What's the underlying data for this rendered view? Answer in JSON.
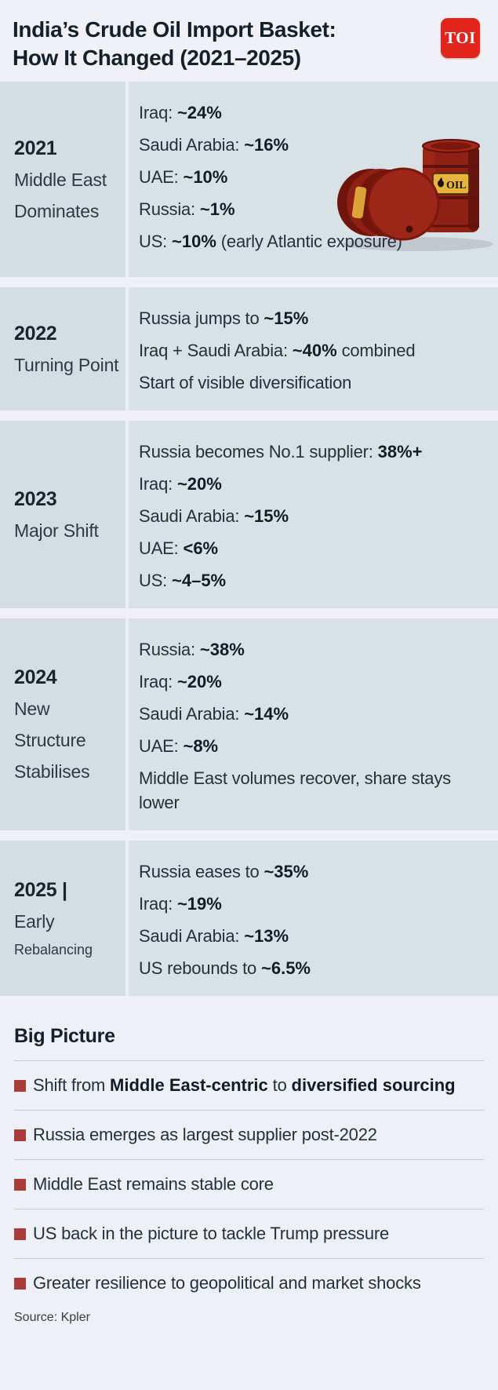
{
  "header": {
    "title": "India’s Crude Oil Import Basket: How It Changed (2021–2025)",
    "logo": "TOI"
  },
  "colors": {
    "accent_red": "#e1251c",
    "bullet_red": "#a93c38",
    "row_bg": "#d8e1e5",
    "row_left_bg": "#d4dee2",
    "page_bg": "#f0f1f6",
    "barrel_red": "#8e2014",
    "label_yellow": "#e7b33c"
  },
  "illustration": {
    "name": "oil-barrels",
    "barrel_label": "OIL"
  },
  "sections": [
    {
      "name": "2021",
      "left": [
        {
          "t": "2021",
          "s": "year"
        },
        {
          "t": "Middle East Dominates",
          "s": "sub"
        }
      ],
      "items": [
        {
          "runs": [
            {
              "t": "Iraq: "
            },
            {
              "t": "~24%",
              "b": true
            }
          ]
        },
        {
          "runs": [
            {
              "t": "Saudi Arabia: "
            },
            {
              "t": "~16%",
              "b": true
            }
          ]
        },
        {
          "runs": [
            {
              "t": "UAE: "
            },
            {
              "t": "~10%",
              "b": true
            }
          ]
        },
        {
          "runs": [
            {
              "t": "Russia: "
            },
            {
              "t": "~1%",
              "b": true
            }
          ]
        },
        {
          "runs": [
            {
              "t": "US: "
            },
            {
              "t": "~10%",
              "b": true
            },
            {
              "t": " (early Atlantic exposure)"
            }
          ]
        }
      ],
      "has_illustration": true
    },
    {
      "name": "2022",
      "left": [
        {
          "t": "2022",
          "s": "year"
        },
        {
          "t": "Turning Point",
          "s": "sub"
        }
      ],
      "items": [
        {
          "runs": [
            {
              "t": "Russia jumps to "
            },
            {
              "t": "~15%",
              "b": true
            }
          ]
        },
        {
          "runs": [
            {
              "t": "Iraq + Saudi Arabia: "
            },
            {
              "t": "~40%",
              "b": true
            },
            {
              "t": " combined"
            }
          ]
        },
        {
          "runs": [
            {
              "t": "Start of visible diversification"
            }
          ]
        }
      ],
      "has_illustration": false
    },
    {
      "name": "2023",
      "left": [
        {
          "t": "2023",
          "s": "year"
        },
        {
          "t": "Major Shift",
          "s": "sub"
        }
      ],
      "items": [
        {
          "runs": [
            {
              "t": "Russia becomes No.1 supplier: "
            },
            {
              "t": "38%+",
              "b": true
            }
          ]
        },
        {
          "runs": [
            {
              "t": "Iraq: "
            },
            {
              "t": "~20%",
              "b": true
            }
          ]
        },
        {
          "runs": [
            {
              "t": "Saudi Arabia: "
            },
            {
              "t": "~15%",
              "b": true
            }
          ]
        },
        {
          "runs": [
            {
              "t": "UAE: "
            },
            {
              "t": "<6%",
              "b": true
            }
          ]
        },
        {
          "runs": [
            {
              "t": "US: "
            },
            {
              "t": "~4–5%",
              "b": true
            }
          ]
        }
      ],
      "has_illustration": false
    },
    {
      "name": "2024",
      "left": [
        {
          "t": "2024",
          "s": "year"
        },
        {
          "t": "New Structure Stabilises",
          "s": "sub"
        }
      ],
      "items": [
        {
          "runs": [
            {
              "t": "Russia: "
            },
            {
              "t": "~38%",
              "b": true
            }
          ]
        },
        {
          "runs": [
            {
              "t": "Iraq: "
            },
            {
              "t": "~20%",
              "b": true
            }
          ]
        },
        {
          "runs": [
            {
              "t": "Saudi Arabia: "
            },
            {
              "t": "~14%",
              "b": true
            }
          ]
        },
        {
          "runs": [
            {
              "t": "UAE: "
            },
            {
              "t": "~8%",
              "b": true
            }
          ]
        },
        {
          "runs": [
            {
              "t": "Middle East volumes recover, share stays lower"
            }
          ]
        }
      ],
      "has_illustration": false
    },
    {
      "name": "2025",
      "left": [
        {
          "t": "2025 |",
          "s": "year"
        },
        {
          "t": "Early",
          "s": "sub"
        },
        {
          "t": "Rebalancing",
          "s": "sub-small"
        }
      ],
      "items": [
        {
          "runs": [
            {
              "t": "Russia eases to "
            },
            {
              "t": "~35%",
              "b": true
            }
          ]
        },
        {
          "runs": [
            {
              "t": "Iraq: "
            },
            {
              "t": "~19%",
              "b": true
            }
          ]
        },
        {
          "runs": [
            {
              "t": "Saudi Arabia: "
            },
            {
              "t": "~13%",
              "b": true
            }
          ]
        },
        {
          "runs": [
            {
              "t": "US rebounds to "
            },
            {
              "t": "~6.5%",
              "b": true
            }
          ]
        }
      ],
      "has_illustration": false
    }
  ],
  "big_picture": {
    "heading": "Big Picture",
    "items": [
      {
        "runs": [
          {
            "t": "Shift from "
          },
          {
            "t": "Middle East-centric",
            "b": true
          },
          {
            "t": " to "
          },
          {
            "t": "diversified sourcing",
            "b": true
          }
        ]
      },
      {
        "runs": [
          {
            "t": "Russia emerges as largest supplier post-2022"
          }
        ]
      },
      {
        "runs": [
          {
            "t": "Middle East remains stable core"
          }
        ]
      },
      {
        "runs": [
          {
            "t": "US back in the picture to tackle Trump pressure"
          }
        ]
      },
      {
        "runs": [
          {
            "t": "Greater resilience to geopolitical and market shocks"
          }
        ]
      }
    ]
  },
  "footer": {
    "source": "Source: Kpler"
  },
  "chart_data": {
    "type": "table",
    "title": "India’s Crude Oil Import Basket: How It Changed (2021–2025)",
    "rows": [
      {
        "year": "2021",
        "phase": "Middle East Dominates",
        "values": {
          "Iraq": "~24%",
          "Saudi Arabia": "~16%",
          "UAE": "~10%",
          "Russia": "~1%",
          "US": "~10% (early Atlantic exposure)"
        }
      },
      {
        "year": "2022",
        "phase": "Turning Point",
        "values": {
          "Russia": "~15%",
          "Iraq + Saudi Arabia combined": "~40%"
        },
        "notes": [
          "Start of visible diversification"
        ]
      },
      {
        "year": "2023",
        "phase": "Major Shift",
        "values": {
          "Russia (No.1 supplier)": "38%+",
          "Iraq": "~20%",
          "Saudi Arabia": "~15%",
          "UAE": "<6%",
          "US": "~4–5%"
        }
      },
      {
        "year": "2024",
        "phase": "New Structure Stabilises",
        "values": {
          "Russia": "~38%",
          "Iraq": "~20%",
          "Saudi Arabia": "~14%",
          "UAE": "~8%"
        },
        "notes": [
          "Middle East volumes recover, share stays lower"
        ]
      },
      {
        "year": "2025",
        "phase": "Early Rebalancing",
        "values": {
          "Russia": "~35%",
          "Iraq": "~19%",
          "Saudi Arabia": "~13%",
          "US": "~6.5%"
        }
      }
    ],
    "source": "Kpler"
  }
}
